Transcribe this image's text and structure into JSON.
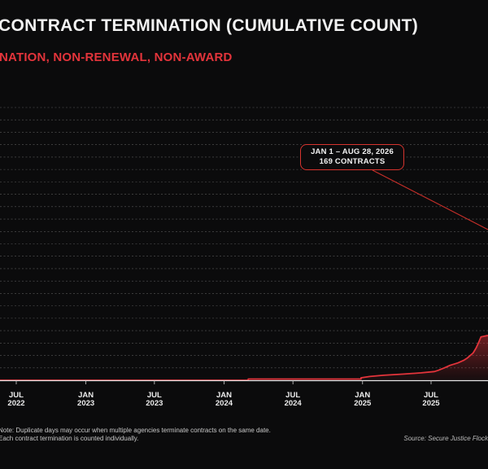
{
  "title": "CONTRACT TERMINATION (CUMULATIVE COUNT)",
  "subtitle": "NATION, NON-RENEWAL, NON-AWARD",
  "footnote": {
    "line1": "Note: Duplicate days may occur when multiple agencies terminate contracts on the same date.",
    "line2": "Each contract termination is counted individually."
  },
  "source": "Source: Secure Justice Flock",
  "callout": {
    "line1": "JAN 1 – AUG 28, 2026",
    "line2": "169 CONTRACTS"
  },
  "colors": {
    "accent": "#e3343b",
    "background": "#0b0b0c",
    "text": "#f2f2f2",
    "grid": "#5a5a5a"
  },
  "chart_data": {
    "type": "line",
    "x_ticks": [
      {
        "month": "JUL",
        "year": "2022"
      },
      {
        "month": "JAN",
        "year": "2023"
      },
      {
        "month": "JUL",
        "year": "2023"
      },
      {
        "month": "JAN",
        "year": "2024"
      },
      {
        "month": "JUL",
        "year": "2024"
      },
      {
        "month": "JAN",
        "year": "2025"
      },
      {
        "month": "JUL",
        "year": "2025"
      }
    ],
    "series": [
      {
        "values": [
          [
            "2022-04-01",
            0
          ],
          [
            "2024-03-05",
            0
          ],
          [
            "2024-03-05",
            1
          ],
          [
            "2024-12-28",
            1
          ],
          [
            "2024-12-28",
            2
          ],
          [
            "2025-01-20",
            3
          ],
          [
            "2025-02-25",
            4
          ],
          [
            "2025-04-20",
            5
          ],
          [
            "2025-06-05",
            6
          ],
          [
            "2025-07-10",
            7
          ],
          [
            "2025-07-20",
            8
          ],
          [
            "2025-08-05",
            10
          ],
          [
            "2025-08-20",
            12
          ],
          [
            "2025-09-10",
            14
          ],
          [
            "2025-09-25",
            16
          ],
          [
            "2025-10-05",
            18
          ],
          [
            "2025-10-20",
            22
          ],
          [
            "2025-10-28",
            26
          ],
          [
            "2025-11-03",
            30
          ],
          [
            "2025-11-10",
            35
          ],
          [
            "2025-11-25",
            36
          ]
        ]
      }
    ],
    "grid": true,
    "ylim": [
      0,
      220
    ]
  }
}
